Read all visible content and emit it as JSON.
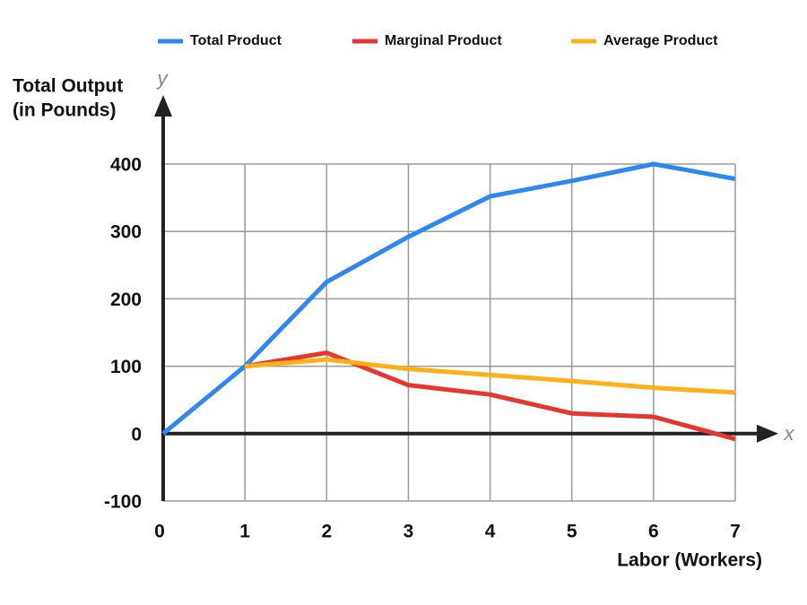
{
  "chart_data": {
    "type": "line",
    "x": [
      0,
      1,
      2,
      3,
      4,
      5,
      6,
      7
    ],
    "series": [
      {
        "name": "Total Product",
        "color": "#2f87f3",
        "values": [
          0,
          100,
          225,
          292,
          352,
          375,
          400,
          378
        ]
      },
      {
        "name": "Marginal Product",
        "color": "#e8352f",
        "values": [
          null,
          100,
          120,
          72,
          58,
          30,
          25,
          -8
        ]
      },
      {
        "name": "Average Product",
        "color": "#fbb117",
        "values": [
          null,
          100,
          110,
          96,
          87,
          78,
          68,
          61
        ]
      }
    ],
    "y_label": [
      "Total Output",
      "(in Pounds)"
    ],
    "x_label": "Labor (Workers)",
    "y_axis_symbol": "y",
    "x_axis_symbol": "x",
    "xlim": [
      0,
      7
    ],
    "xticks": [
      0,
      1,
      2,
      3,
      4,
      5,
      6,
      7
    ],
    "ylim": [
      -100,
      400
    ],
    "yticks": [
      -100,
      0,
      100,
      200,
      300,
      400
    ],
    "grid": true,
    "legend": "top"
  }
}
